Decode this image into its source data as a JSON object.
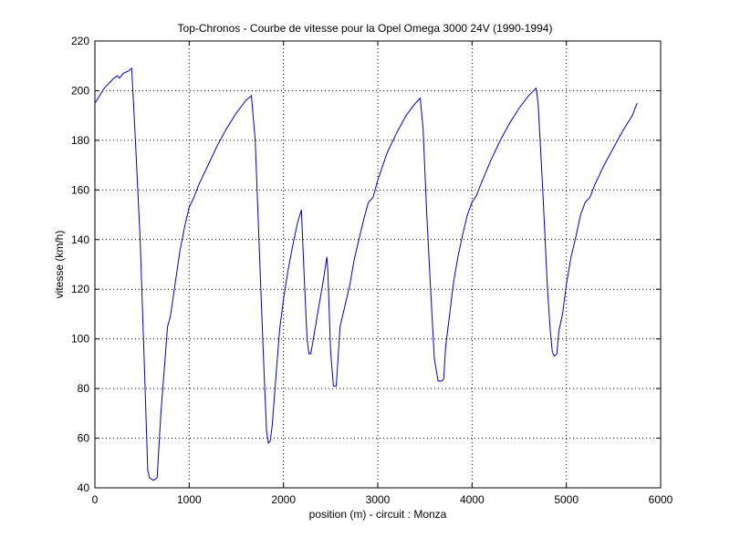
{
  "chart_data": {
    "type": "line",
    "title": "Top-Chronos - Courbe de vitesse pour la Opel Omega 3000 24V (1990-1994)",
    "xlabel": "position (m) - circuit : Monza",
    "ylabel": "vitesse (km/h)",
    "xlim": [
      0,
      6000
    ],
    "ylim": [
      40,
      220
    ],
    "xticks": [
      0,
      1000,
      2000,
      3000,
      4000,
      5000,
      6000
    ],
    "yticks": [
      40,
      60,
      80,
      100,
      120,
      140,
      160,
      180,
      200,
      220
    ],
    "grid": true,
    "series": [
      {
        "color": "#0000c0",
        "x": [
          0,
          100,
          200,
          240,
          260,
          300,
          360,
          390,
          430,
          480,
          520,
          560,
          580,
          620,
          660,
          700,
          740,
          770,
          800,
          850,
          900,
          950,
          1000,
          1050,
          1100,
          1200,
          1300,
          1400,
          1500,
          1600,
          1660,
          1700,
          1750,
          1790,
          1820,
          1840,
          1860,
          1880,
          1920,
          1960,
          2000,
          2050,
          2100,
          2150,
          2190,
          2220,
          2250,
          2270,
          2290,
          2330,
          2370,
          2420,
          2460,
          2470,
          2500,
          2530,
          2560,
          2600,
          2650,
          2700,
          2750,
          2800,
          2850,
          2900,
          2950,
          3000,
          3100,
          3200,
          3300,
          3400,
          3450,
          3480,
          3520,
          3560,
          3600,
          3640,
          3680,
          3700,
          3720,
          3760,
          3800,
          3850,
          3900,
          3950,
          4000,
          4050,
          4100,
          4200,
          4300,
          4400,
          4500,
          4600,
          4680,
          4700,
          4750,
          4800,
          4830,
          4850,
          4870,
          4900,
          4920,
          4960,
          5000,
          5050,
          5100,
          5150,
          5200,
          5250,
          5300,
          5400,
          5500,
          5600,
          5700,
          5750
        ],
        "y": [
          195,
          201,
          205,
          206,
          205,
          207,
          208,
          209,
          180,
          140,
          95,
          47,
          44,
          43,
          44,
          70,
          90,
          105,
          109,
          122,
          135,
          145,
          153,
          157,
          162,
          170,
          178,
          185,
          191,
          196,
          198,
          180,
          130,
          90,
          63,
          58,
          59,
          65,
          85,
          104,
          116,
          128,
          138,
          147,
          152,
          125,
          100,
          94,
          94,
          103,
          112,
          123,
          133,
          128,
          95,
          81,
          81,
          105,
          113,
          121,
          132,
          140,
          148,
          155,
          157,
          164,
          175,
          183,
          190,
          195,
          197,
          185,
          150,
          120,
          92,
          83,
          83,
          84,
          97,
          109,
          122,
          133,
          142,
          150,
          155,
          158,
          163,
          172,
          180,
          187,
          193,
          198,
          201,
          195,
          160,
          120,
          103,
          95,
          93,
          94,
          103,
          110,
          122,
          133,
          141,
          150,
          155,
          157,
          162,
          170,
          177,
          184,
          190,
          195
        ]
      }
    ]
  }
}
